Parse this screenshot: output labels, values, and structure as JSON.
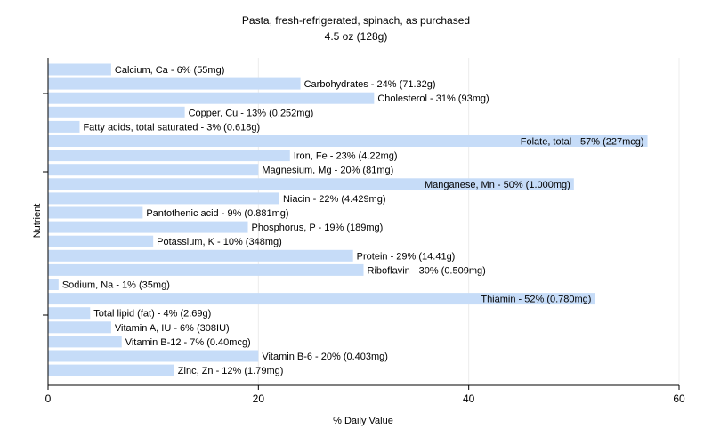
{
  "chart_data": {
    "type": "bar",
    "orientation": "horizontal",
    "title": "Pasta, fresh-refrigerated, spinach, as purchased",
    "subtitle": "4.5 oz (128g)",
    "xlabel": "% Daily Value",
    "ylabel": "Nutrient",
    "xlim": [
      0,
      60
    ],
    "x_ticks": [
      "0",
      "20",
      "40",
      "60"
    ],
    "grid": true,
    "bar_color": "#c6dcf8",
    "categories": [
      "Calcium, Ca",
      "Carbohydrates",
      "Cholesterol",
      "Copper, Cu",
      "Fatty acids, total saturated",
      "Folate, total",
      "Iron, Fe",
      "Magnesium, Mg",
      "Manganese, Mn",
      "Niacin",
      "Pantothenic acid",
      "Phosphorus, P",
      "Potassium, K",
      "Protein",
      "Riboflavin",
      "Sodium, Na",
      "Thiamin",
      "Total lipid (fat)",
      "Vitamin A, IU",
      "Vitamin B-12",
      "Vitamin B-6",
      "Zinc, Zn"
    ],
    "values": [
      6,
      24,
      31,
      13,
      3,
      57,
      23,
      20,
      50,
      22,
      9,
      19,
      10,
      29,
      30,
      1,
      52,
      4,
      6,
      7,
      20,
      12
    ],
    "labels": [
      "Calcium, Ca - 6% (55mg)",
      "Carbohydrates - 24% (71.32g)",
      "Cholesterol - 31% (93mg)",
      "Copper, Cu - 13% (0.252mg)",
      "Fatty acids, total saturated - 3% (0.618g)",
      "Folate, total - 57% (227mcg)",
      "Iron, Fe - 23% (4.22mg)",
      "Magnesium, Mg - 20% (81mg)",
      "Manganese, Mn - 50% (1.000mg)",
      "Niacin - 22% (4.429mg)",
      "Pantothenic acid - 9% (0.881mg)",
      "Phosphorus, P - 19% (189mg)",
      "Potassium, K - 10% (348mg)",
      "Protein - 29% (14.41g)",
      "Riboflavin - 30% (0.509mg)",
      "Sodium, Na - 1% (35mg)",
      "Thiamin - 52% (0.780mg)",
      "Total lipid (fat) - 4% (2.69g)",
      "Vitamin A, IU - 6% (308IU)",
      "Vitamin B-12 - 7% (0.40mcg)",
      "Vitamin B-6 - 20% (0.403mg)",
      "Zinc, Zn - 12% (1.79mg)"
    ]
  }
}
